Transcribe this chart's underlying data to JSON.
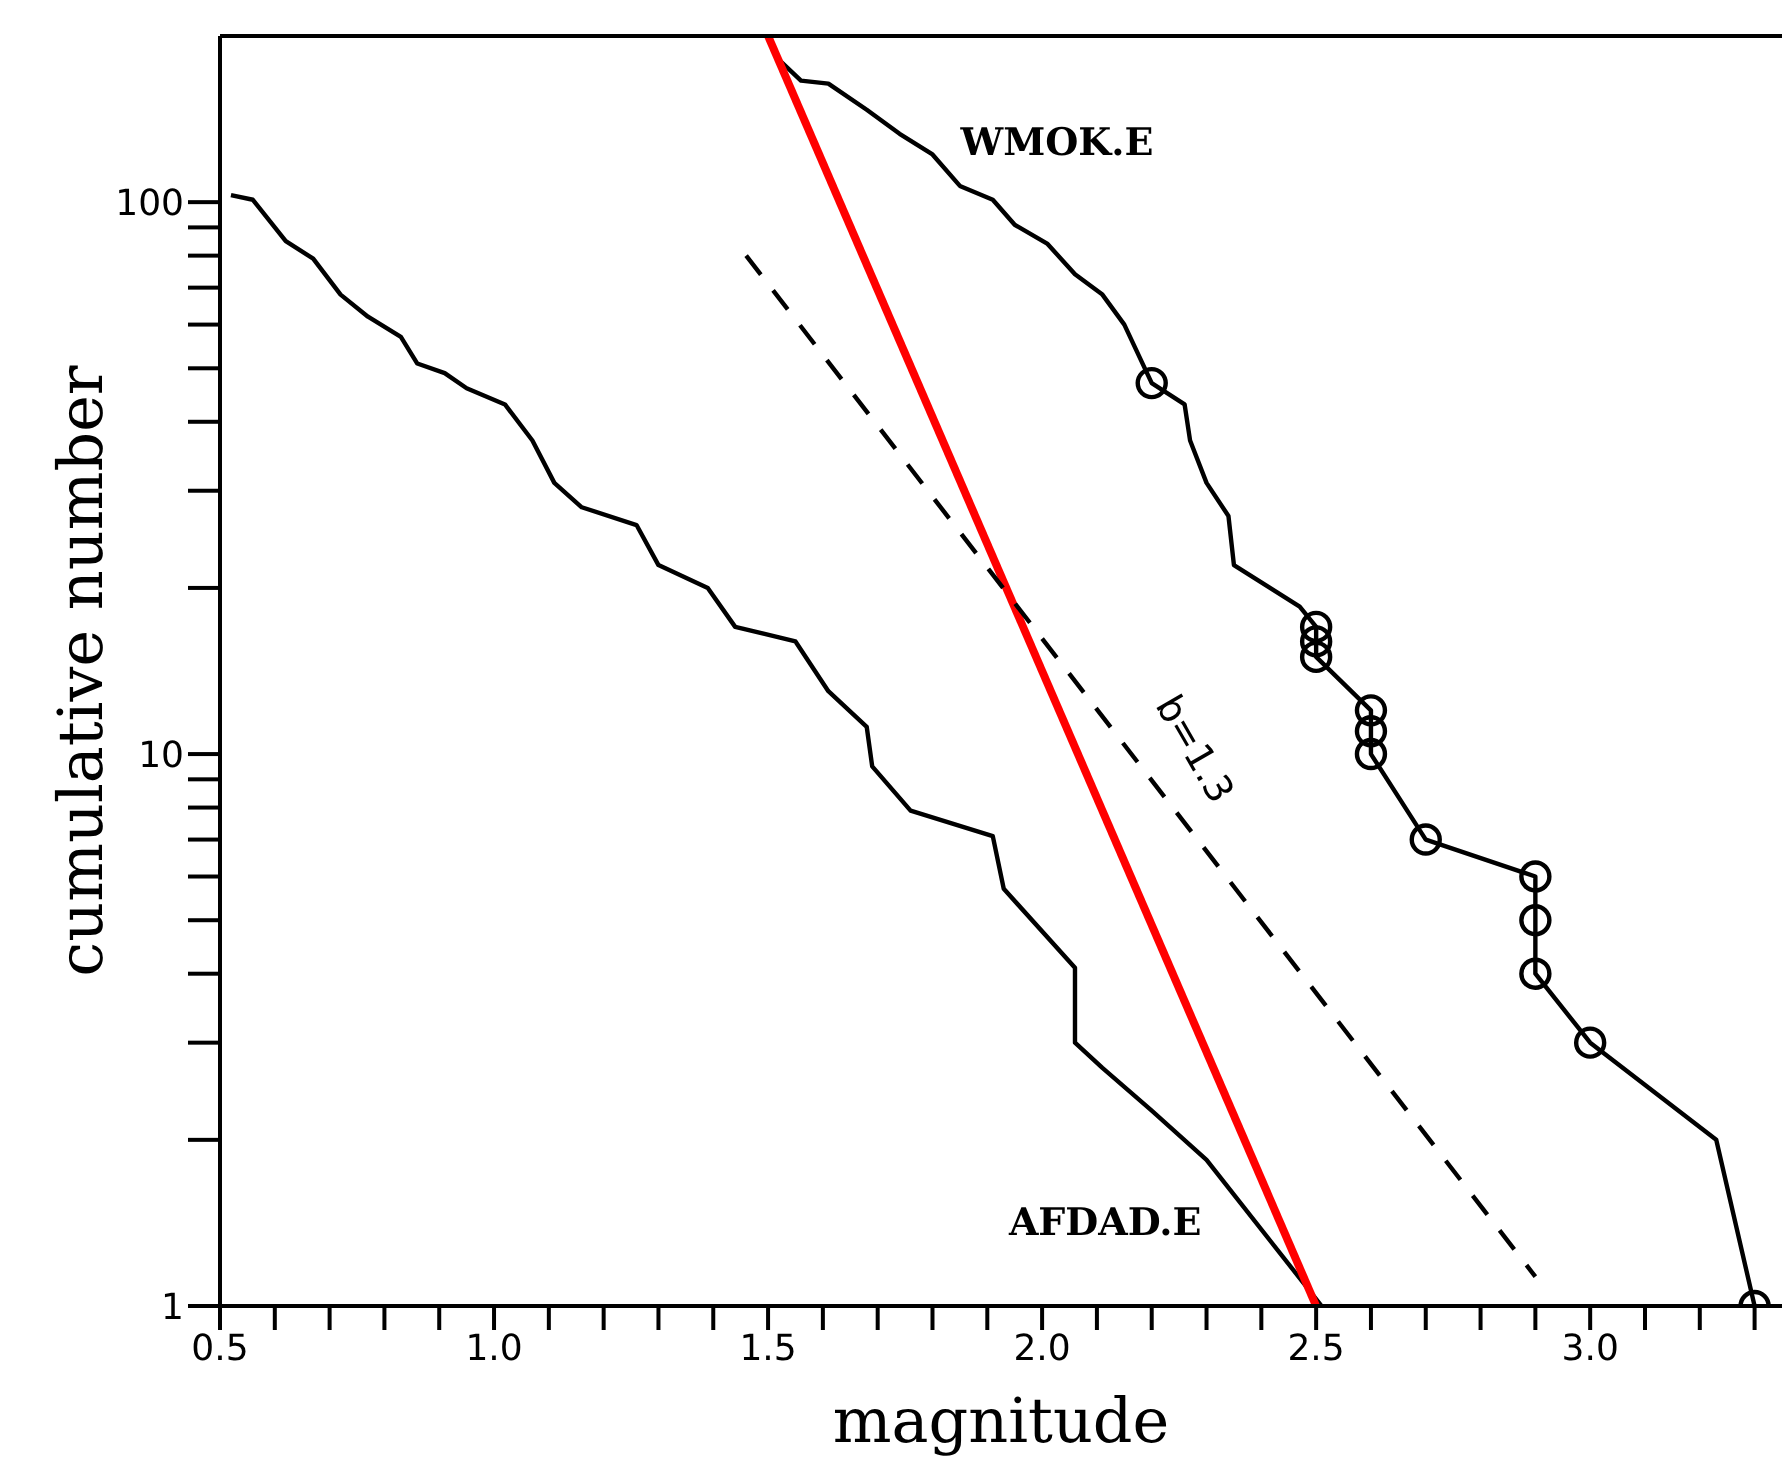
{
  "chart_data": {
    "type": "line",
    "xlabel": "magnitude",
    "ylabel": "cumulative number",
    "log": "y",
    "xlim": [
      0.5,
      3.35
    ],
    "xticks": [
      {
        "value": 0.5,
        "label": "0.5"
      },
      {
        "value": 0.6,
        "label": null
      },
      {
        "value": 0.7,
        "label": null
      },
      {
        "value": 0.8,
        "label": null
      },
      {
        "value": 0.9,
        "label": null
      },
      {
        "value": 1,
        "label": "1.0"
      },
      {
        "value": 1.1,
        "label": null
      },
      {
        "value": 1.2,
        "label": null
      },
      {
        "value": 1.3,
        "label": null
      },
      {
        "value": 1.4,
        "label": null
      },
      {
        "value": 1.5,
        "label": "1.5"
      },
      {
        "value": 1.6,
        "label": null
      },
      {
        "value": 1.7,
        "label": null
      },
      {
        "value": 1.8,
        "label": null
      },
      {
        "value": 1.9,
        "label": null
      },
      {
        "value": 2,
        "label": "2.0"
      },
      {
        "value": 2.1,
        "label": null
      },
      {
        "value": 2.2,
        "label": null
      },
      {
        "value": 2.3,
        "label": null
      },
      {
        "value": 2.4,
        "label": null
      },
      {
        "value": 2.5,
        "label": "2.5"
      },
      {
        "value": 2.6,
        "label": null
      },
      {
        "value": 2.7,
        "label": null
      },
      {
        "value": 2.8,
        "label": null
      },
      {
        "value": 2.9,
        "label": null
      },
      {
        "value": 3,
        "label": "3.0"
      },
      {
        "value": 3.1,
        "label": null
      },
      {
        "value": 3.2,
        "label": null
      },
      {
        "value": 3.3,
        "label": null
      }
    ],
    "ylim": [
      1,
      200
    ],
    "yticks": [
      1,
      {
        "value": 2,
        "label": null
      },
      {
        "value": 3,
        "label": null
      },
      {
        "value": 4,
        "label": null
      },
      {
        "value": 5,
        "label": null
      },
      {
        "value": 6,
        "label": null
      },
      {
        "value": 7,
        "label": null
      },
      {
        "value": 8,
        "label": null
      },
      {
        "value": 9,
        "label": null
      },
      10,
      {
        "value": 20,
        "label": null
      },
      {
        "value": 30,
        "label": null
      },
      {
        "value": 40,
        "label": null
      },
      {
        "value": 50,
        "label": null
      },
      {
        "value": 60,
        "label": null
      },
      {
        "value": 70,
        "label": null
      },
      {
        "value": 80,
        "label": null
      },
      {
        "value": 90,
        "label": null
      },
      100
    ],
    "annotations": [
      "b=1.3"
    ],
    "series": [
      {
        "name": "AFDAD.E",
        "color": "#000000",
        "x": [
          0.52,
          0.56,
          0.62,
          0.67,
          0.72,
          0.77,
          0.83,
          0.86,
          0.91,
          0.95,
          1.02,
          1.07,
          1.11,
          1.16,
          1.26,
          1.3,
          1.39,
          1.44,
          1.55,
          1.61,
          1.68,
          1.69,
          1.76,
          1.91,
          1.93,
          2.06,
          2.06,
          2.11,
          2.2,
          2.3,
          2.51
        ],
        "values": [
          103,
          101,
          85,
          79,
          68,
          62,
          57,
          51,
          49,
          46,
          43,
          37,
          31,
          28,
          26,
          22,
          20,
          17,
          16,
          13,
          11.2,
          9.5,
          7.9,
          7.1,
          5.7,
          4.1,
          3,
          2.7,
          2.26,
          1.84,
          1
        ]
      },
      {
        "name": "WMOK.E",
        "color": "#000000",
        "x": [
          1.52,
          1.56,
          1.61,
          1.68,
          1.74,
          1.8,
          1.85,
          1.91,
          1.95,
          2.01,
          2.06,
          2.11,
          2.15,
          2.2,
          2.26,
          2.27,
          2.3,
          2.34,
          2.35,
          2.47,
          2.5,
          2.5,
          2.5,
          2.6,
          2.6,
          2.6,
          2.7,
          2.9,
          2.9,
          2.9,
          3,
          3.23,
          3.3
        ],
        "values": [
          181,
          166,
          164,
          147,
          133,
          122,
          107,
          101,
          91,
          84,
          74,
          68,
          60,
          47,
          43,
          37,
          31,
          27,
          22,
          18.5,
          17,
          16,
          15,
          12,
          11,
          10,
          7,
          6,
          5,
          4,
          3,
          2,
          1
        ]
      },
      {
        "type": "scatter",
        "color": "#000000",
        "marker": "circle",
        "x": [
          2.2,
          2.5,
          2.5,
          2.5,
          2.6,
          2.6,
          2.6,
          2.7,
          2.9,
          2.9,
          2.9,
          3,
          3.3
        ],
        "values": [
          47,
          17,
          16,
          15,
          12,
          11,
          10,
          7,
          6,
          5,
          4,
          3,
          1
        ]
      },
      {
        "color": "#ff0000",
        "x": [
          1.5,
          2.5
        ],
        "values": [
          200,
          1
        ]
      },
      {
        "color": "#000000",
        "line_style": "dashed",
        "x": [
          1.46,
          2.9
        ],
        "values": [
          80,
          1.13
        ]
      }
    ]
  }
}
